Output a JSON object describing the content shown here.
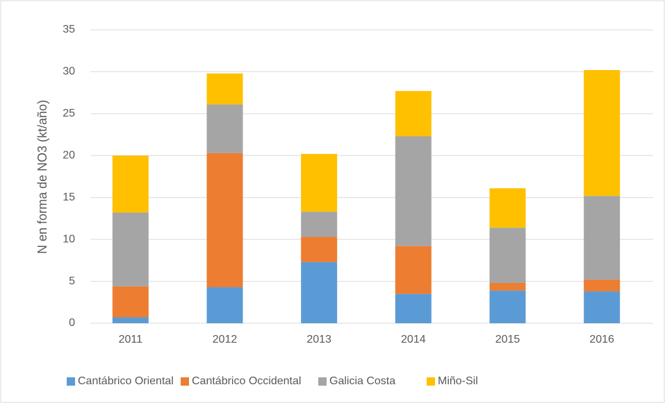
{
  "chart_data": {
    "type": "stacked_bar",
    "y_label": "N en forma de NO3 (kt/año)",
    "categories": [
      "2011",
      "2012",
      "2013",
      "2014",
      "2015",
      "2016"
    ],
    "series": [
      {
        "name": "Cantábrico Oriental",
        "color": "#5b9bd5",
        "values": [
          0.7,
          4.3,
          7.3,
          3.5,
          3.9,
          3.8
        ]
      },
      {
        "name": "Cantábrico Occidental",
        "color": "#ed7d31",
        "values": [
          3.7,
          16.0,
          3.0,
          5.7,
          0.9,
          1.4
        ]
      },
      {
        "name": "Galicia Costa",
        "color": "#a5a5a5",
        "values": [
          8.8,
          5.8,
          3.0,
          13.1,
          6.6,
          10.0
        ]
      },
      {
        "name": "Miño-Sil",
        "color": "#ffc000",
        "values": [
          6.8,
          3.7,
          6.9,
          5.4,
          4.7,
          15.0
        ]
      }
    ],
    "ylim": [
      0,
      35
    ],
    "yticks": [
      0,
      5,
      10,
      15,
      20,
      25,
      30,
      35
    ],
    "grid": true,
    "legend": "bottom"
  }
}
